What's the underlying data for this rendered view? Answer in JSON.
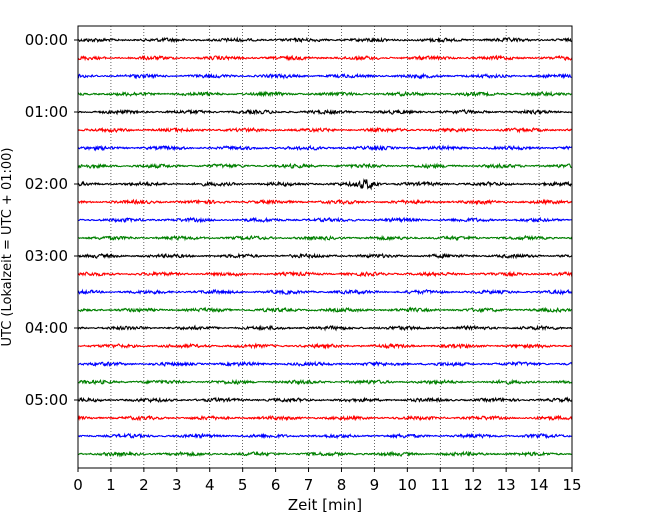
{
  "chart_data": {
    "type": "line",
    "title": "",
    "xlabel": "Zeit  [min]",
    "ylabel": "UTC (Lokalzeit = UTC + 01:00)",
    "xlim": [
      0,
      15
    ],
    "x_ticks": [
      "0",
      "1",
      "2",
      "3",
      "4",
      "5",
      "6",
      "7",
      "8",
      "9",
      "10",
      "11",
      "12",
      "13",
      "14",
      "15"
    ],
    "y_tick_labels": [
      "00:00",
      "01:00",
      "02:00",
      "03:00",
      "04:00",
      "05:00"
    ],
    "grid": "vertical dotted lines at each minute",
    "trace_interval_minutes": 15,
    "trace_count": 24,
    "colors_cycle": [
      "#000000",
      "#ff0000",
      "#0000ff",
      "#008000"
    ],
    "series": [
      {
        "start": "00:00",
        "color": "#000000"
      },
      {
        "start": "00:15",
        "color": "#ff0000"
      },
      {
        "start": "00:30",
        "color": "#0000ff"
      },
      {
        "start": "00:45",
        "color": "#008000"
      },
      {
        "start": "01:00",
        "color": "#000000"
      },
      {
        "start": "01:15",
        "color": "#ff0000"
      },
      {
        "start": "01:30",
        "color": "#0000ff"
      },
      {
        "start": "01:45",
        "color": "#008000"
      },
      {
        "start": "02:00",
        "color": "#000000",
        "event_near_min": 8.8
      },
      {
        "start": "02:15",
        "color": "#ff0000"
      },
      {
        "start": "02:30",
        "color": "#0000ff"
      },
      {
        "start": "02:45",
        "color": "#008000"
      },
      {
        "start": "03:00",
        "color": "#000000"
      },
      {
        "start": "03:15",
        "color": "#ff0000"
      },
      {
        "start": "03:30",
        "color": "#0000ff"
      },
      {
        "start": "03:45",
        "color": "#008000"
      },
      {
        "start": "04:00",
        "color": "#000000"
      },
      {
        "start": "04:15",
        "color": "#ff0000"
      },
      {
        "start": "04:30",
        "color": "#0000ff"
      },
      {
        "start": "04:45",
        "color": "#008000"
      },
      {
        "start": "05:00",
        "color": "#000000"
      },
      {
        "start": "05:15",
        "color": "#ff0000"
      },
      {
        "start": "05:30",
        "color": "#0000ff"
      },
      {
        "start": "05:45",
        "color": "#008000"
      }
    ]
  }
}
